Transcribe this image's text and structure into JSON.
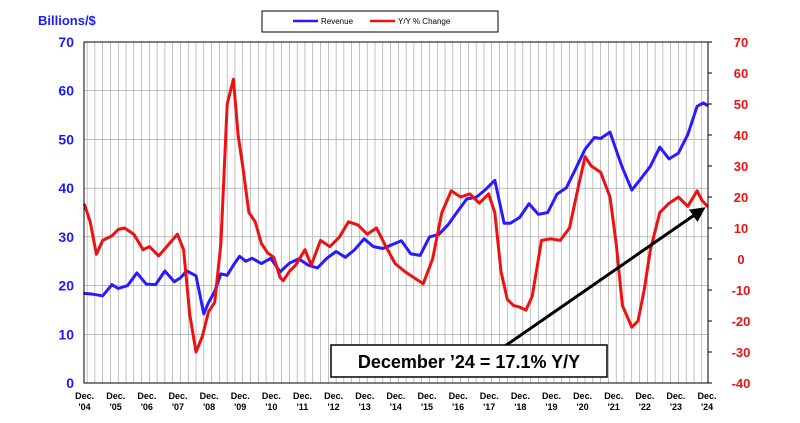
{
  "chart_data": {
    "type": "line",
    "title": "",
    "ylabel": "Billions/$",
    "y2label": "",
    "ylim": [
      0,
      70
    ],
    "y2lim": [
      -40,
      70
    ],
    "yticks": [
      0,
      10,
      20,
      30,
      40,
      50,
      60,
      70
    ],
    "y2ticks": [
      -40,
      -30,
      -20,
      -10,
      0,
      10,
      20,
      30,
      40,
      50,
      60,
      70
    ],
    "xlim": [
      2004.9,
      2024.95
    ],
    "x_ticks": [
      {
        "x": 2004.92,
        "line1": "Dec.",
        "line2": "'04"
      },
      {
        "x": 2005.92,
        "line1": "Dec.",
        "line2": "'05"
      },
      {
        "x": 2006.92,
        "line1": "Dec.",
        "line2": "'06"
      },
      {
        "x": 2007.92,
        "line1": "Dec.",
        "line2": "'07"
      },
      {
        "x": 2008.92,
        "line1": "Dec.",
        "line2": "'08"
      },
      {
        "x": 2009.92,
        "line1": "Dec.",
        "line2": "'09"
      },
      {
        "x": 2010.92,
        "line1": "Dec.",
        "line2": "'10"
      },
      {
        "x": 2011.92,
        "line1": "Dec.",
        "line2": "'11"
      },
      {
        "x": 2012.92,
        "line1": "Dec.",
        "line2": "'12"
      },
      {
        "x": 2013.92,
        "line1": "Dec.",
        "line2": "'13"
      },
      {
        "x": 2014.92,
        "line1": "Dec.",
        "line2": "'14"
      },
      {
        "x": 2015.92,
        "line1": "Dec.",
        "line2": "'15"
      },
      {
        "x": 2016.92,
        "line1": "Dec.",
        "line2": "'16"
      },
      {
        "x": 2017.92,
        "line1": "Dec.",
        "line2": "'17"
      },
      {
        "x": 2018.92,
        "line1": "Dec.",
        "line2": "'18"
      },
      {
        "x": 2019.92,
        "line1": "Dec.",
        "line2": "'19"
      },
      {
        "x": 2020.92,
        "line1": "Dec.",
        "line2": "'20"
      },
      {
        "x": 2021.92,
        "line1": "Dec.",
        "line2": "'21"
      },
      {
        "x": 2022.92,
        "line1": "Dec.",
        "line2": "'22"
      },
      {
        "x": 2023.92,
        "line1": "Dec.",
        "line2": "'23"
      },
      {
        "x": 2024.92,
        "line1": "Dec.",
        "line2": "'24"
      }
    ],
    "grid": true,
    "legend_position": "top-center",
    "series": [
      {
        "name": "Revenue",
        "axis": "left",
        "color": "#2a1aff",
        "x": [
          2004.92,
          2005.2,
          2005.5,
          2005.8,
          2006.0,
          2006.3,
          2006.6,
          2006.9,
          2007.2,
          2007.5,
          2007.8,
          2008.0,
          2008.2,
          2008.5,
          2008.75,
          2008.9,
          2009.1,
          2009.3,
          2009.5,
          2009.7,
          2009.9,
          2010.1,
          2010.3,
          2010.6,
          2010.9,
          2011.2,
          2011.5,
          2011.8,
          2012.1,
          2012.4,
          2012.7,
          2013.0,
          2013.3,
          2013.6,
          2013.9,
          2014.2,
          2014.5,
          2014.8,
          2015.1,
          2015.4,
          2015.7,
          2016.0,
          2016.3,
          2016.6,
          2016.9,
          2017.2,
          2017.5,
          2017.8,
          2018.1,
          2018.4,
          2018.6,
          2018.9,
          2019.2,
          2019.5,
          2019.8,
          2020.1,
          2020.4,
          2020.7,
          2021.0,
          2021.3,
          2021.5,
          2021.8,
          2022.0,
          2022.2,
          2022.5,
          2022.8,
          2023.1,
          2023.4,
          2023.7,
          2024.0,
          2024.3,
          2024.6,
          2024.8,
          2024.92
        ],
        "y": [
          18.4,
          18.2,
          17.9,
          20.2,
          19.4,
          20.0,
          22.6,
          20.3,
          20.2,
          23.0,
          20.8,
          21.6,
          23.0,
          22.0,
          14.2,
          16.5,
          18.8,
          22.4,
          22.1,
          24.2,
          26.0,
          25.0,
          25.6,
          24.5,
          25.6,
          22.8,
          24.6,
          25.5,
          24.2,
          23.6,
          25.6,
          27.0,
          25.8,
          27.4,
          29.6,
          28.0,
          27.6,
          28.4,
          29.2,
          26.5,
          26.2,
          30.0,
          30.5,
          32.5,
          35.2,
          37.8,
          38.1,
          39.7,
          41.6,
          32.8,
          32.8,
          34.0,
          36.8,
          34.6,
          35.0,
          38.8,
          40.1,
          44.0,
          48.0,
          50.4,
          50.2,
          51.5,
          47.8,
          44.2,
          39.6,
          42.0,
          44.5,
          48.4,
          46.0,
          47.2,
          51.0,
          56.8,
          57.5,
          57.0
        ]
      },
      {
        "name": "Y/Y % Change",
        "axis": "right",
        "color": "#ee1111",
        "x": [
          2004.92,
          2005.1,
          2005.3,
          2005.5,
          2005.8,
          2006.0,
          2006.2,
          2006.5,
          2006.8,
          2007.0,
          2007.3,
          2007.6,
          2007.9,
          2008.1,
          2008.3,
          2008.5,
          2008.7,
          2008.9,
          2009.1,
          2009.3,
          2009.5,
          2009.7,
          2009.85,
          2010.0,
          2010.2,
          2010.4,
          2010.6,
          2010.8,
          2011.0,
          2011.2,
          2011.3,
          2011.5,
          2011.7,
          2012.0,
          2012.2,
          2012.5,
          2012.8,
          2013.1,
          2013.4,
          2013.7,
          2014.0,
          2014.3,
          2014.6,
          2014.9,
          2015.2,
          2015.5,
          2015.8,
          2016.1,
          2016.4,
          2016.7,
          2017.0,
          2017.3,
          2017.6,
          2017.9,
          2018.1,
          2018.3,
          2018.5,
          2018.7,
          2018.9,
          2019.1,
          2019.3,
          2019.6,
          2019.9,
          2020.2,
          2020.5,
          2020.8,
          2021.0,
          2021.2,
          2021.5,
          2021.8,
          2022.0,
          2022.2,
          2022.5,
          2022.7,
          2022.9,
          2023.1,
          2023.4,
          2023.7,
          2024.0,
          2024.3,
          2024.6,
          2024.75,
          2024.92
        ],
        "y": [
          17.5,
          12.0,
          1.5,
          6.0,
          7.5,
          9.5,
          10.0,
          8.0,
          3.0,
          4.0,
          1.0,
          4.5,
          8.0,
          3.0,
          -18.0,
          -30.0,
          -25.0,
          -17.0,
          -14.0,
          5.0,
          50.0,
          58.0,
          40.0,
          30.0,
          15.0,
          12.0,
          5.0,
          2.0,
          0.5,
          -6.0,
          -7.0,
          -4.0,
          -2.0,
          3.0,
          -2.0,
          6.0,
          4.0,
          7.0,
          12.0,
          11.0,
          8.0,
          10.0,
          4.0,
          -1.5,
          -4.0,
          -6.0,
          -8.0,
          0.0,
          15.0,
          22.0,
          20.0,
          21.0,
          18.0,
          21.0,
          15.0,
          -4.0,
          -13.0,
          -15.0,
          -15.5,
          -16.5,
          -12.0,
          6.0,
          6.5,
          6.0,
          10.0,
          24.0,
          33.0,
          30.0,
          28.0,
          20.0,
          5.0,
          -15.0,
          -22.0,
          -20.0,
          -10.0,
          3.0,
          15.0,
          18.0,
          20.0,
          17.0,
          22.0,
          19.0,
          17.1
        ]
      }
    ],
    "annotations": [
      {
        "text": "December ’24 = 17.1% Y/Y",
        "target_x": 2024.92,
        "target_y2": 17.1
      }
    ]
  }
}
